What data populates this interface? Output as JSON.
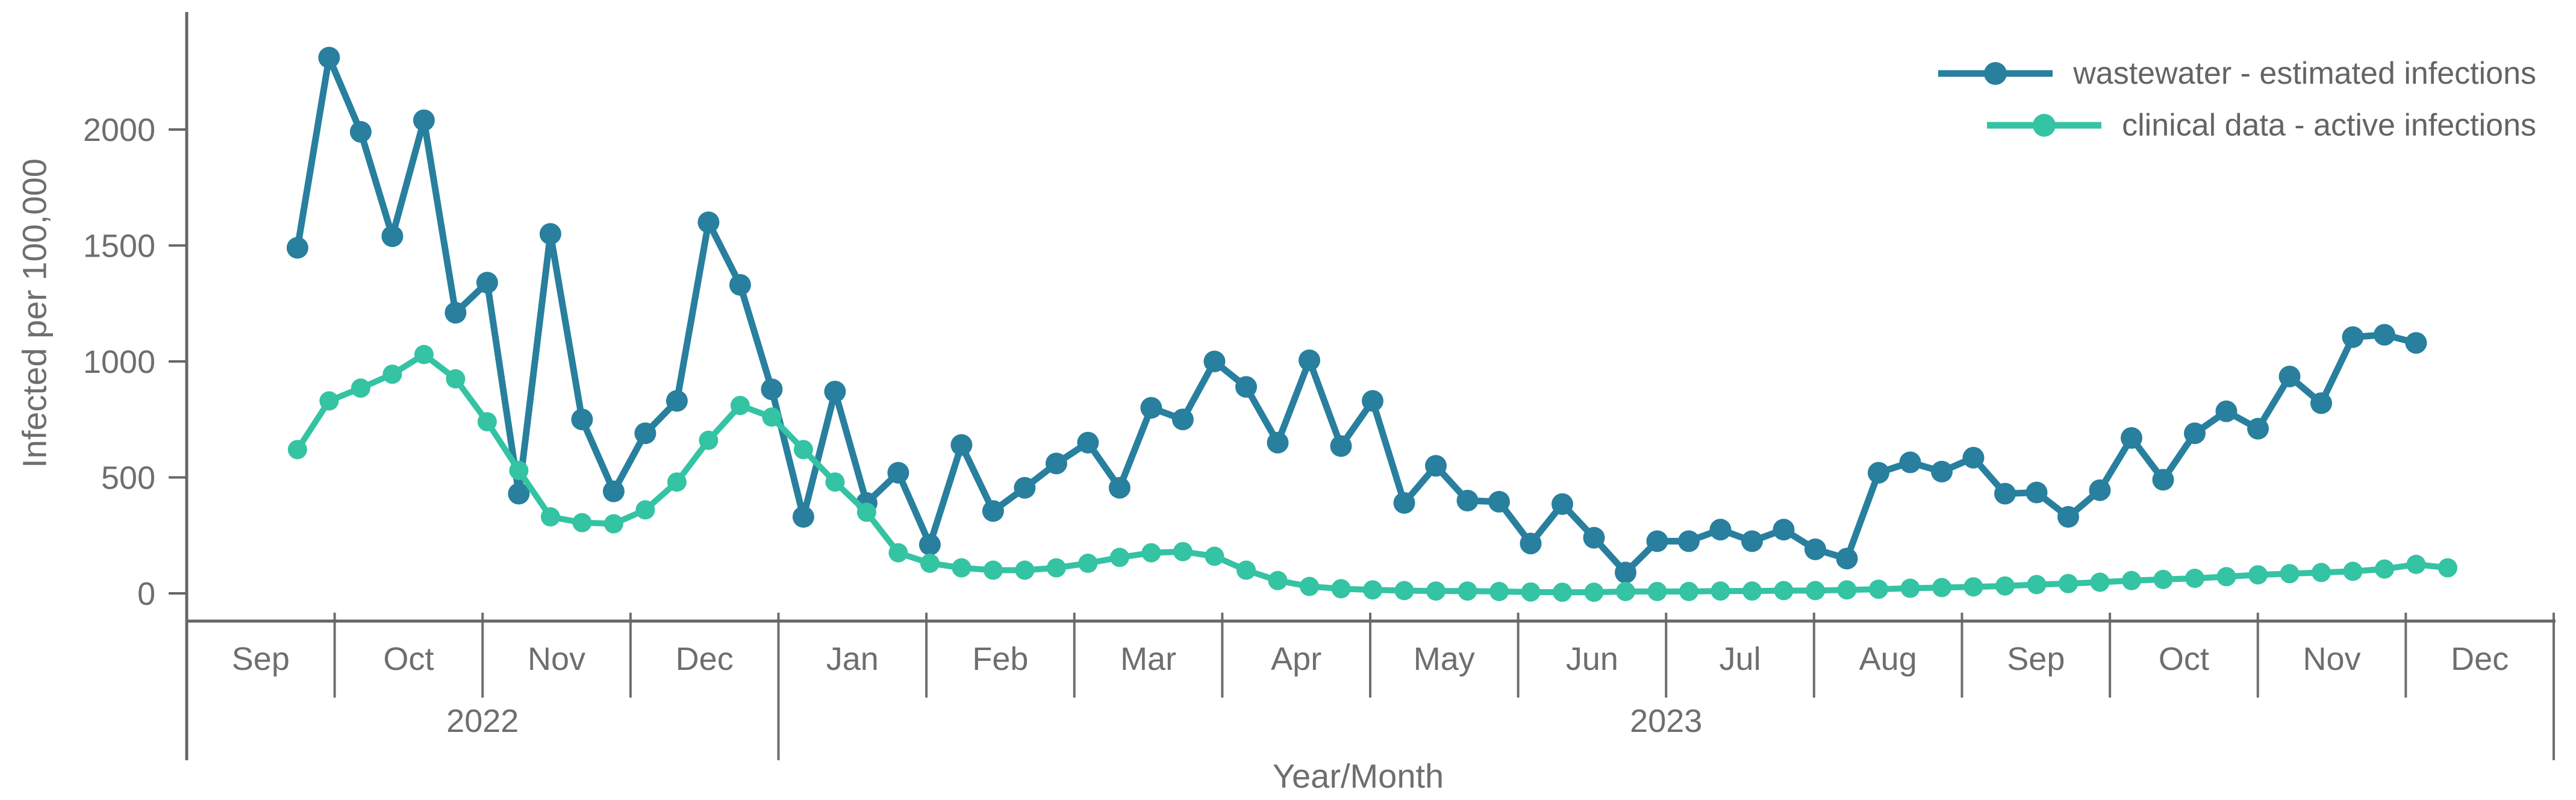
{
  "figure_title": "",
  "colors": {
    "background": "#ffffff",
    "axis_line": "#666666",
    "divider_line": "#6e6e6e",
    "axis_text": "#6e6e6e",
    "legend_text": "#646464",
    "series_wastewater": "#287f9e",
    "series_clinical": "#34c3a3"
  },
  "chart_data": {
    "type": "line",
    "title": "",
    "ylabel": "Infected per 100,000",
    "xlabel": "Year/Month",
    "ylim": [
      0,
      2400
    ],
    "yticks": [
      0,
      500,
      1000,
      1500,
      2000
    ],
    "grid": false,
    "legend_position": "top-right",
    "x_unit": "week",
    "months": [
      "Sep",
      "Oct",
      "Nov",
      "Dec",
      "Jan",
      "Feb",
      "Mar",
      "Apr",
      "May",
      "Jun",
      "Jul",
      "Aug",
      "Sep",
      "Oct",
      "Nov",
      "Dec"
    ],
    "years": [
      {
        "label": "2022",
        "month_span": 4
      },
      {
        "label": "2023",
        "month_span": 12
      }
    ],
    "series": [
      {
        "name": "wastewater - estimated infections",
        "color": "#287f9e",
        "values": [
          1490,
          2310,
          1990,
          1540,
          2040,
          1210,
          1340,
          430,
          1550,
          750,
          440,
          690,
          830,
          1600,
          1330,
          880,
          330,
          870,
          390,
          520,
          210,
          640,
          355,
          455,
          560,
          650,
          455,
          800,
          750,
          1000,
          890,
          650,
          1005,
          635,
          830,
          390,
          550,
          400,
          395,
          215,
          385,
          240,
          90,
          225,
          225,
          275,
          225,
          275,
          190,
          150,
          520,
          565,
          525,
          585,
          430,
          435,
          330,
          445,
          670,
          490,
          690,
          785,
          710,
          935,
          820,
          1105,
          1115,
          1080
        ]
      },
      {
        "name": "clinical data - active infections",
        "color": "#34c3a3",
        "values": [
          620,
          830,
          885,
          945,
          1030,
          925,
          740,
          530,
          330,
          305,
          300,
          360,
          480,
          660,
          810,
          760,
          620,
          480,
          350,
          175,
          130,
          110,
          100,
          100,
          110,
          130,
          155,
          175,
          180,
          160,
          100,
          55,
          30,
          20,
          15,
          12,
          10,
          10,
          8,
          6,
          5,
          5,
          8,
          8,
          8,
          10,
          10,
          12,
          12,
          15,
          18,
          22,
          25,
          28,
          32,
          38,
          42,
          48,
          55,
          60,
          65,
          72,
          80,
          85,
          90,
          95,
          105,
          125,
          110
        ]
      }
    ],
    "layout_hints": {
      "first_point_frac": 0.0468,
      "point_spacing_frac": 0.013359,
      "point_radius": [
        18,
        16
      ],
      "line_width": [
        11,
        10
      ]
    }
  }
}
